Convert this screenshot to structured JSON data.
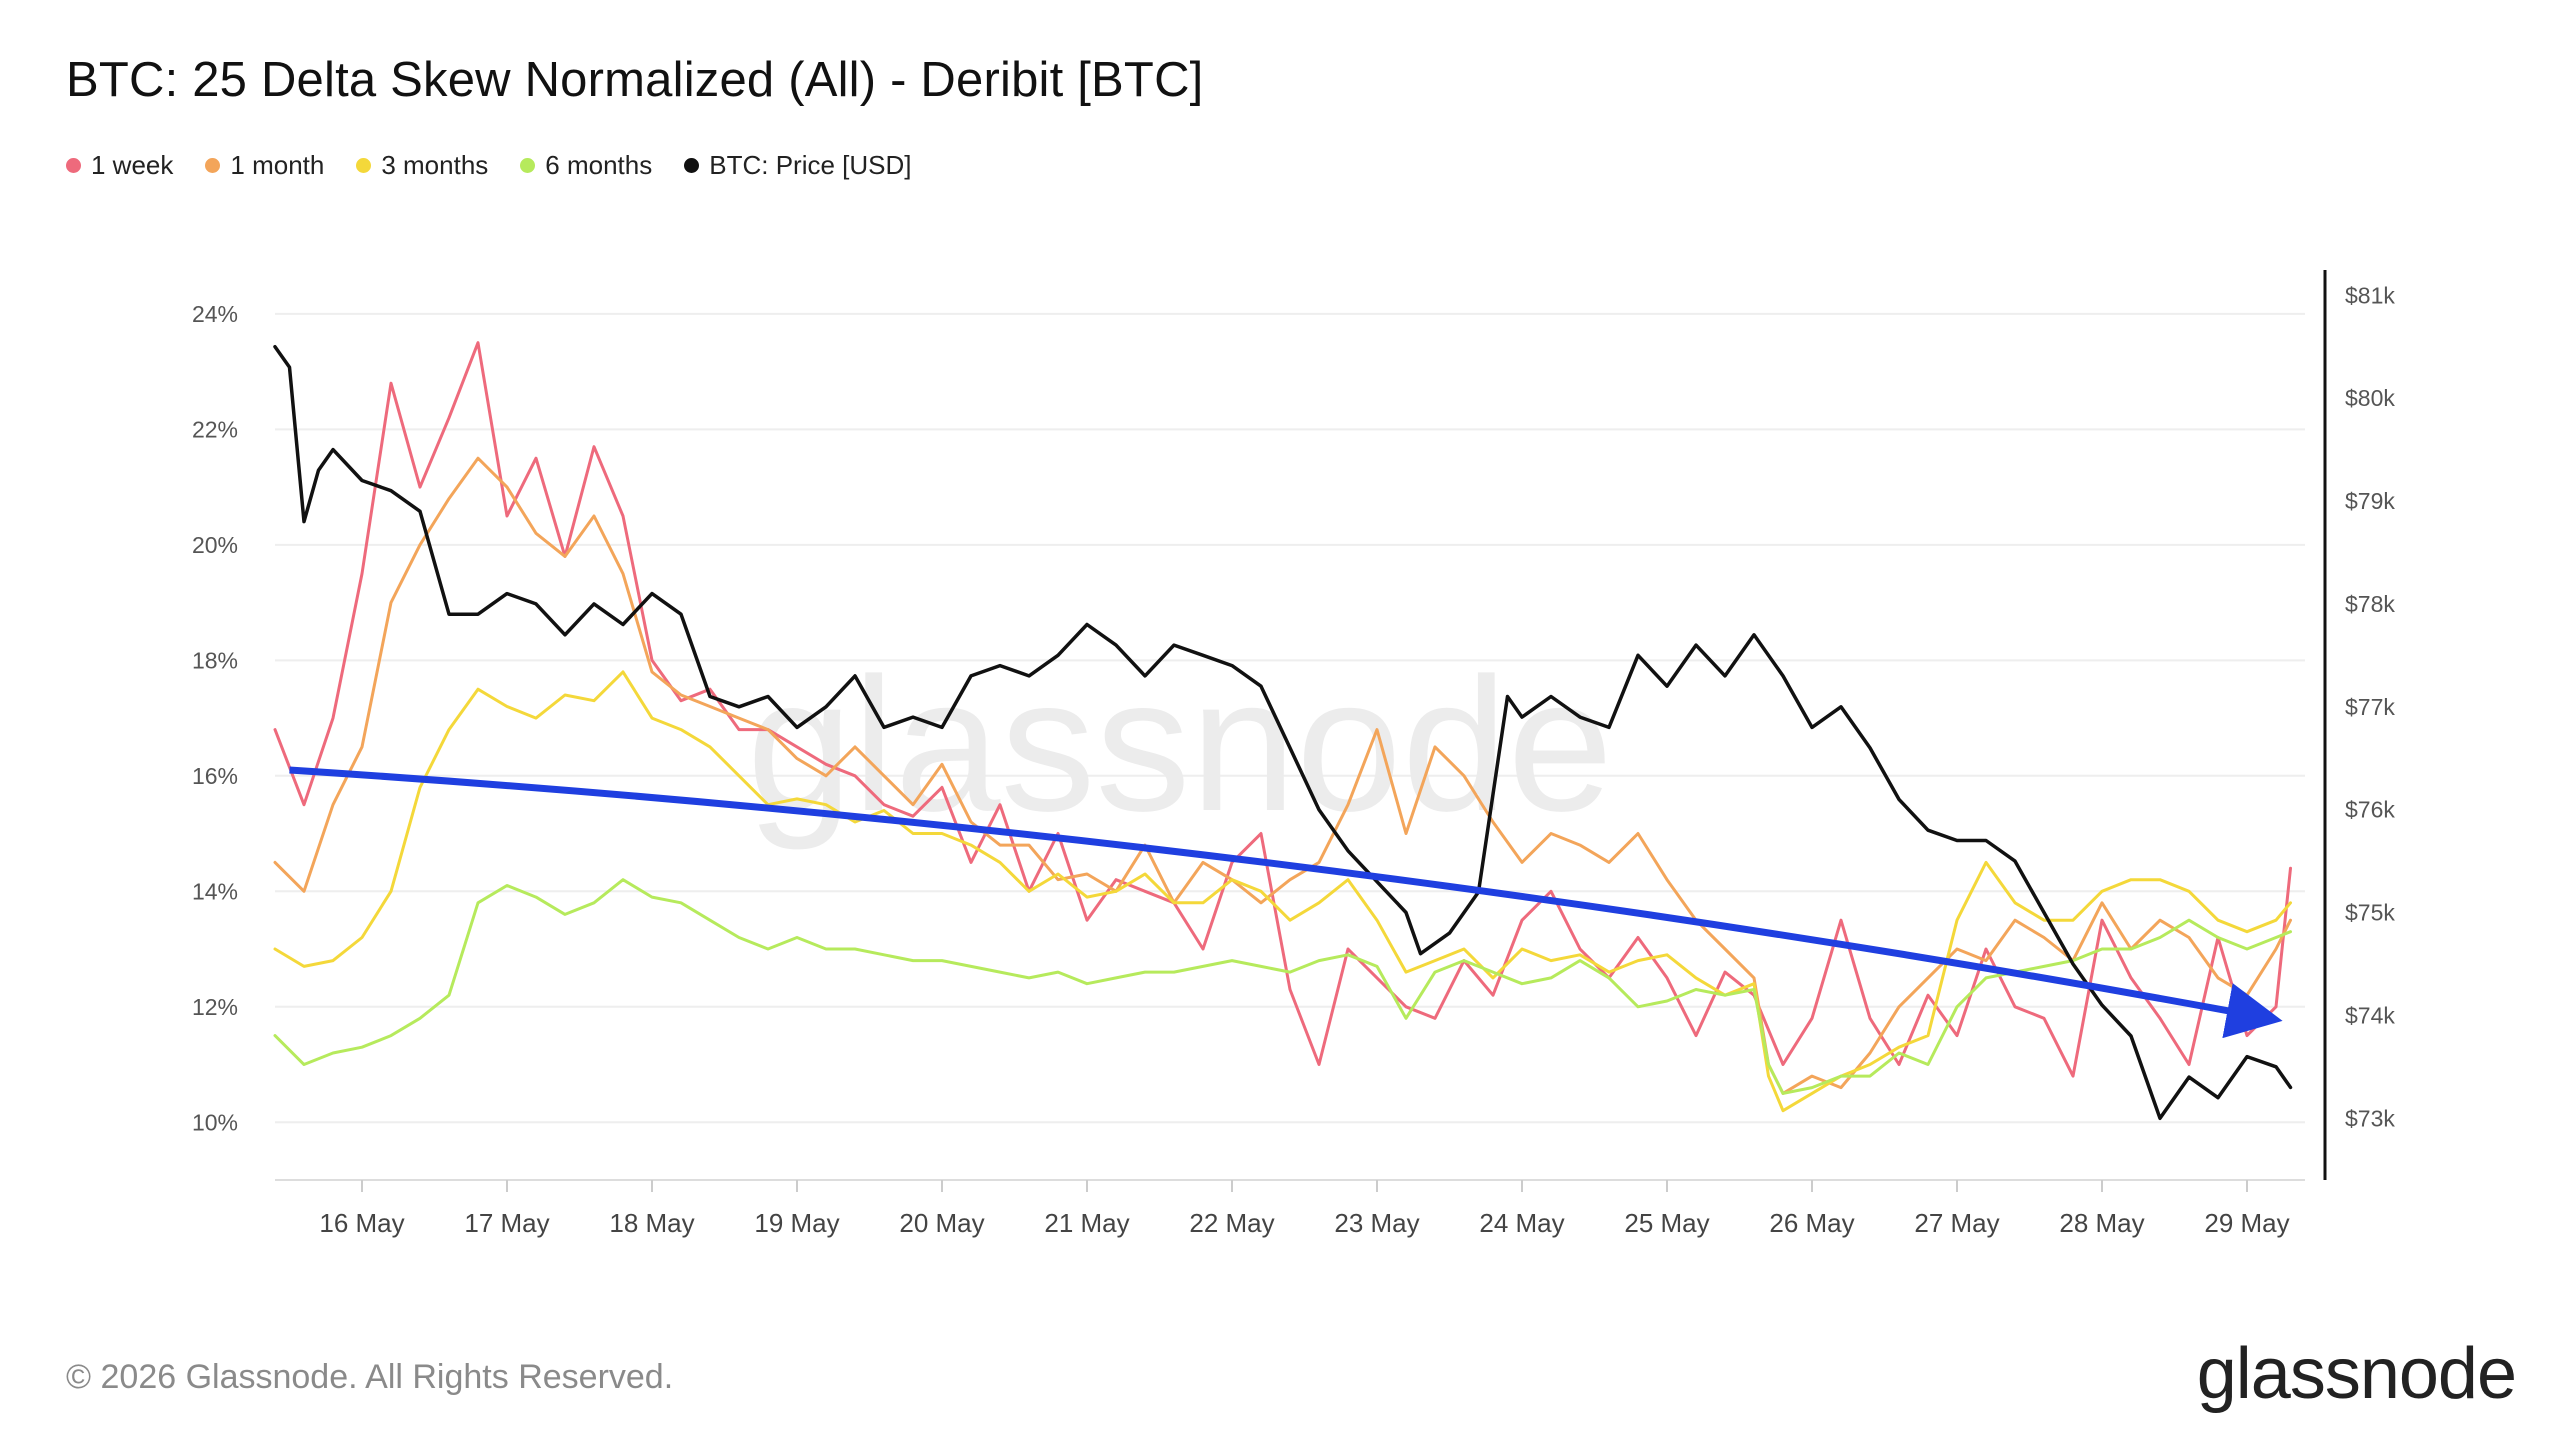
{
  "chart_data": {
    "type": "line",
    "title": "BTC: 25 Delta Skew Normalized (All) - Deribit [BTC]",
    "legend_position": "top-left",
    "x_ticks": [
      "16 May",
      "17 May",
      "18 May",
      "19 May",
      "20 May",
      "21 May",
      "22 May",
      "23 May",
      "24 May",
      "25 May",
      "26 May",
      "27 May",
      "28 May",
      "29 May"
    ],
    "y_left": {
      "ylim": [
        9.0,
        24.5
      ],
      "ticks": [
        10,
        12,
        14,
        16,
        18,
        20,
        22,
        24
      ],
      "tick_labels": [
        "10%",
        "12%",
        "14%",
        "16%",
        "18%",
        "20%",
        "22%",
        "24%"
      ]
    },
    "y_right": {
      "ylim": [
        72.4,
        81.1
      ],
      "ticks": [
        73,
        74,
        75,
        76,
        77,
        78,
        79,
        80,
        81
      ],
      "tick_labels": [
        "$73k",
        "$74k",
        "$75k",
        "$76k",
        "$77k",
        "$78k",
        "$79k",
        "$80k",
        "$81k"
      ]
    },
    "grid": true,
    "series": [
      {
        "name": "1 week",
        "axis": "left",
        "color": "#ee6a7c",
        "x": [
          15.4,
          15.6,
          15.8,
          16.0,
          16.2,
          16.4,
          16.6,
          16.8,
          17.0,
          17.2,
          17.4,
          17.6,
          17.8,
          18.0,
          18.2,
          18.4,
          18.6,
          18.8,
          19.0,
          19.2,
          19.4,
          19.6,
          19.8,
          20.0,
          20.2,
          20.4,
          20.6,
          20.8,
          21.0,
          21.2,
          21.4,
          21.6,
          21.8,
          22.0,
          22.2,
          22.4,
          22.6,
          22.8,
          23.0,
          23.2,
          23.4,
          23.6,
          23.8,
          24.0,
          24.2,
          24.4,
          24.6,
          24.8,
          25.0,
          25.2,
          25.4,
          25.6,
          25.8,
          26.0,
          26.2,
          26.4,
          26.6,
          26.8,
          27.0,
          27.2,
          27.4,
          27.6,
          27.8,
          28.0,
          28.2,
          28.4,
          28.6,
          28.8,
          29.0,
          29.2,
          29.3
        ],
        "values": [
          16.8,
          15.5,
          17.0,
          19.5,
          22.8,
          21.0,
          22.2,
          23.5,
          20.5,
          21.5,
          19.8,
          21.7,
          20.5,
          18.0,
          17.3,
          17.5,
          16.8,
          16.8,
          16.5,
          16.2,
          16.0,
          15.5,
          15.3,
          15.8,
          14.5,
          15.5,
          14.0,
          15.0,
          13.5,
          14.2,
          14.0,
          13.8,
          13.0,
          14.5,
          15.0,
          12.3,
          11.0,
          13.0,
          12.5,
          12.0,
          11.8,
          12.8,
          12.2,
          13.5,
          14.0,
          13.0,
          12.5,
          13.2,
          12.5,
          11.5,
          12.6,
          12.2,
          11.0,
          11.8,
          13.5,
          11.8,
          11.0,
          12.2,
          11.5,
          13.0,
          12.0,
          11.8,
          10.8,
          13.5,
          12.5,
          11.8,
          11.0,
          13.2,
          11.5,
          12.0,
          14.4
        ]
      },
      {
        "name": "1 month",
        "axis": "left",
        "color": "#f3a55a",
        "x": [
          15.4,
          15.6,
          15.8,
          16.0,
          16.2,
          16.4,
          16.6,
          16.8,
          17.0,
          17.2,
          17.4,
          17.6,
          17.8,
          18.0,
          18.2,
          18.4,
          18.6,
          18.8,
          19.0,
          19.2,
          19.4,
          19.6,
          19.8,
          20.0,
          20.2,
          20.4,
          20.6,
          20.8,
          21.0,
          21.2,
          21.4,
          21.6,
          21.8,
          22.0,
          22.2,
          22.4,
          22.6,
          22.8,
          23.0,
          23.2,
          23.4,
          23.6,
          23.8,
          24.0,
          24.2,
          24.4,
          24.6,
          24.8,
          25.0,
          25.2,
          25.4,
          25.6,
          25.7,
          25.8,
          26.0,
          26.2,
          26.4,
          26.6,
          26.8,
          27.0,
          27.2,
          27.4,
          27.6,
          27.8,
          28.0,
          28.2,
          28.4,
          28.6,
          28.8,
          29.0,
          29.2,
          29.3
        ],
        "values": [
          14.5,
          14.0,
          15.5,
          16.5,
          19.0,
          20.0,
          20.8,
          21.5,
          21.0,
          20.2,
          19.8,
          20.5,
          19.5,
          17.8,
          17.4,
          17.2,
          17.0,
          16.8,
          16.3,
          16.0,
          16.5,
          16.0,
          15.5,
          16.2,
          15.2,
          14.8,
          14.8,
          14.2,
          14.3,
          14.0,
          14.8,
          13.8,
          14.5,
          14.2,
          13.8,
          14.2,
          14.5,
          15.5,
          16.8,
          15.0,
          16.5,
          16.0,
          15.2,
          14.5,
          15.0,
          14.8,
          14.5,
          15.0,
          14.2,
          13.5,
          13.0,
          12.5,
          11.0,
          10.5,
          10.8,
          10.6,
          11.2,
          12.0,
          12.5,
          13.0,
          12.8,
          13.5,
          13.2,
          12.8,
          13.8,
          13.0,
          13.5,
          13.2,
          12.5,
          12.2,
          13.0,
          13.5
        ]
      },
      {
        "name": "3 months",
        "axis": "left",
        "color": "#f4d83a",
        "x": [
          15.4,
          15.6,
          15.8,
          16.0,
          16.2,
          16.4,
          16.6,
          16.8,
          17.0,
          17.2,
          17.4,
          17.6,
          17.8,
          18.0,
          18.2,
          18.4,
          18.6,
          18.8,
          19.0,
          19.2,
          19.4,
          19.6,
          19.8,
          20.0,
          20.2,
          20.4,
          20.6,
          20.8,
          21.0,
          21.2,
          21.4,
          21.6,
          21.8,
          22.0,
          22.2,
          22.4,
          22.6,
          22.8,
          23.0,
          23.2,
          23.4,
          23.6,
          23.8,
          24.0,
          24.2,
          24.4,
          24.6,
          24.8,
          25.0,
          25.2,
          25.4,
          25.6,
          25.7,
          25.8,
          26.0,
          26.2,
          26.4,
          26.6,
          26.8,
          27.0,
          27.2,
          27.4,
          27.6,
          27.8,
          28.0,
          28.2,
          28.4,
          28.6,
          28.8,
          29.0,
          29.2,
          29.3
        ],
        "values": [
          13.0,
          12.7,
          12.8,
          13.2,
          14.0,
          15.8,
          16.8,
          17.5,
          17.2,
          17.0,
          17.4,
          17.3,
          17.8,
          17.0,
          16.8,
          16.5,
          16.0,
          15.5,
          15.6,
          15.5,
          15.2,
          15.4,
          15.0,
          15.0,
          14.8,
          14.5,
          14.0,
          14.3,
          13.9,
          14.0,
          14.3,
          13.8,
          13.8,
          14.2,
          14.0,
          13.5,
          13.8,
          14.2,
          13.5,
          12.6,
          12.8,
          13.0,
          12.5,
          13.0,
          12.8,
          12.9,
          12.6,
          12.8,
          12.9,
          12.5,
          12.2,
          12.4,
          10.8,
          10.2,
          10.5,
          10.8,
          11.0,
          11.3,
          11.5,
          13.5,
          14.5,
          13.8,
          13.5,
          13.5,
          14.0,
          14.2,
          14.2,
          14.0,
          13.5,
          13.3,
          13.5,
          13.8
        ]
      },
      {
        "name": "6 months",
        "axis": "left",
        "color": "#b6ea5c",
        "x": [
          15.4,
          15.6,
          15.8,
          16.0,
          16.2,
          16.4,
          16.6,
          16.8,
          17.0,
          17.2,
          17.4,
          17.6,
          17.8,
          18.0,
          18.2,
          18.4,
          18.6,
          18.8,
          19.0,
          19.2,
          19.4,
          19.6,
          19.8,
          20.0,
          20.2,
          20.4,
          20.6,
          20.8,
          21.0,
          21.2,
          21.4,
          21.6,
          21.8,
          22.0,
          22.2,
          22.4,
          22.6,
          22.8,
          23.0,
          23.2,
          23.4,
          23.6,
          23.8,
          24.0,
          24.2,
          24.4,
          24.6,
          24.8,
          25.0,
          25.2,
          25.4,
          25.6,
          25.7,
          25.8,
          26.0,
          26.2,
          26.4,
          26.6,
          26.8,
          27.0,
          27.2,
          27.4,
          27.6,
          27.8,
          28.0,
          28.2,
          28.4,
          28.6,
          28.8,
          29.0,
          29.2,
          29.3
        ],
        "values": [
          11.5,
          11.0,
          11.2,
          11.3,
          11.5,
          11.8,
          12.2,
          13.8,
          14.1,
          13.9,
          13.6,
          13.8,
          14.2,
          13.9,
          13.8,
          13.5,
          13.2,
          13.0,
          13.2,
          13.0,
          13.0,
          12.9,
          12.8,
          12.8,
          12.7,
          12.6,
          12.5,
          12.6,
          12.4,
          12.5,
          12.6,
          12.6,
          12.7,
          12.8,
          12.7,
          12.6,
          12.8,
          12.9,
          12.7,
          11.8,
          12.6,
          12.8,
          12.6,
          12.4,
          12.5,
          12.8,
          12.5,
          12.0,
          12.1,
          12.3,
          12.2,
          12.3,
          11.0,
          10.5,
          10.6,
          10.8,
          10.8,
          11.2,
          11.0,
          12.0,
          12.5,
          12.6,
          12.7,
          12.8,
          13.0,
          13.0,
          13.2,
          13.5,
          13.2,
          13.0,
          13.2,
          13.3
        ]
      },
      {
        "name": "BTC: Price [USD]",
        "axis": "right",
        "color": "#111111",
        "x": [
          15.4,
          15.5,
          15.6,
          15.7,
          15.8,
          16.0,
          16.2,
          16.4,
          16.6,
          16.8,
          17.0,
          17.2,
          17.4,
          17.6,
          17.8,
          18.0,
          18.2,
          18.4,
          18.6,
          18.8,
          19.0,
          19.2,
          19.4,
          19.6,
          19.8,
          20.0,
          20.2,
          20.4,
          20.6,
          20.8,
          21.0,
          21.2,
          21.4,
          21.6,
          21.8,
          22.0,
          22.2,
          22.4,
          22.6,
          22.8,
          23.0,
          23.2,
          23.3,
          23.5,
          23.7,
          23.9,
          24.0,
          24.2,
          24.4,
          24.6,
          24.8,
          25.0,
          25.2,
          25.4,
          25.6,
          25.8,
          26.0,
          26.2,
          26.4,
          26.6,
          26.8,
          27.0,
          27.2,
          27.4,
          27.6,
          27.8,
          28.0,
          28.2,
          28.4,
          28.6,
          28.8,
          29.0,
          29.2,
          29.3
        ],
        "values": [
          80.5,
          80.3,
          78.8,
          79.3,
          79.5,
          79.2,
          79.1,
          78.9,
          77.9,
          77.9,
          78.1,
          78.0,
          77.7,
          78.0,
          77.8,
          78.1,
          77.9,
          77.1,
          77.0,
          77.1,
          76.8,
          77.0,
          77.3,
          76.8,
          76.9,
          76.8,
          77.3,
          77.4,
          77.3,
          77.5,
          77.8,
          77.6,
          77.3,
          77.6,
          77.5,
          77.4,
          77.2,
          76.6,
          76.0,
          75.6,
          75.3,
          75.0,
          74.6,
          74.8,
          75.2,
          77.1,
          76.9,
          77.1,
          76.9,
          76.8,
          77.5,
          77.2,
          77.6,
          77.3,
          77.7,
          77.3,
          76.8,
          77.0,
          76.6,
          76.1,
          75.8,
          75.7,
          75.7,
          75.5,
          75.0,
          74.5,
          74.1,
          73.8,
          73.0,
          73.4,
          73.2,
          73.6,
          73.5,
          73.3
        ]
      }
    ],
    "annotations": [
      {
        "type": "arrow",
        "color": "#1f3fe0",
        "from": {
          "x": 15.5,
          "y": 16.1
        },
        "to": {
          "x": 29.15,
          "y": 11.8
        },
        "curve": "convex"
      }
    ]
  },
  "watermark": "glassnode",
  "footer": {
    "copyright": "© 2026 Glassnode. All Rights Reserved.",
    "brand": "glassnode"
  }
}
